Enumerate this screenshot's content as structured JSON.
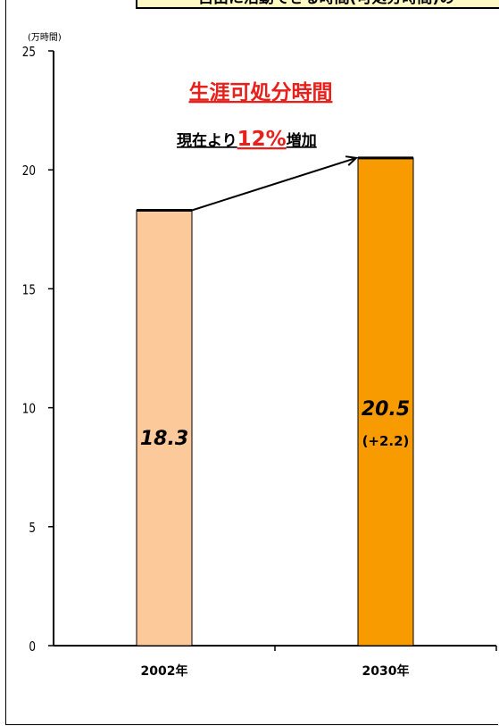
{
  "banner": {
    "text": "自由に活動できる時間(可処分時間)の"
  },
  "chart_data": {
    "type": "bar",
    "title": "生涯可処分時間",
    "ylabel": "(万時間)",
    "ylim": [
      0,
      25
    ],
    "yticks": [
      "0",
      "5",
      "10",
      "15",
      "20",
      "25"
    ],
    "categories": [
      "2002年",
      "2030年"
    ],
    "values": [
      18.3,
      20.5
    ],
    "value_labels": [
      "18.3",
      "20.5"
    ],
    "diff_label": "(+2.2)",
    "bar_colors": [
      "#fbc99a",
      "#f79b00"
    ],
    "annotation": {
      "prefix": "現在より",
      "percent": "12%",
      "suffix": "増加"
    }
  }
}
